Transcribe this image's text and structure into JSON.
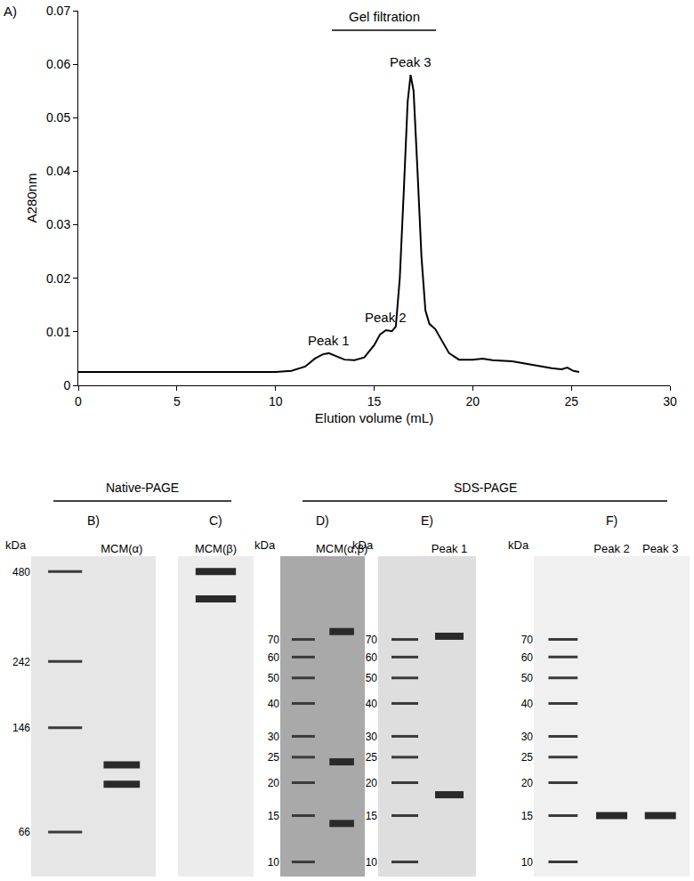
{
  "chart_data": [
    {
      "type": "line",
      "panel": "A)",
      "title": "Gel filtration",
      "xlabel": "Elution volume (mL)",
      "ylabel": "A280nm",
      "x": [
        0,
        10,
        10.8,
        11.5,
        12,
        12.4,
        12.7,
        13,
        13.5,
        14,
        14.5,
        15,
        15.3,
        15.6,
        15.9,
        16.1,
        16.3,
        16.5,
        16.7,
        16.85,
        17.0,
        17.2,
        17.4,
        17.6,
        17.8,
        18.1,
        18.4,
        18.8,
        19.3,
        20,
        20.5,
        21,
        22,
        23,
        24,
        24.5,
        24.8,
        25.1,
        25.4
      ],
      "values": [
        0.0025,
        0.0025,
        0.0027,
        0.0035,
        0.005,
        0.0058,
        0.006,
        0.0056,
        0.0048,
        0.0047,
        0.0052,
        0.0075,
        0.0095,
        0.0103,
        0.0101,
        0.011,
        0.02,
        0.036,
        0.053,
        0.058,
        0.055,
        0.04,
        0.024,
        0.014,
        0.0115,
        0.0105,
        0.0085,
        0.006,
        0.0048,
        0.0048,
        0.005,
        0.0047,
        0.0045,
        0.0038,
        0.0032,
        0.003,
        0.0033,
        0.0027,
        0.0025
      ],
      "color": "#000000",
      "xlim": [
        0,
        30
      ],
      "xticks": [
        0,
        5,
        10,
        15,
        20,
        25,
        30
      ],
      "ylim": [
        0,
        0.07
      ],
      "yticks": [
        0,
        0.01,
        0.02,
        0.03,
        0.04,
        0.05,
        0.06,
        0.07
      ],
      "grid": false,
      "annotations": [
        {
          "text": "Peak 1",
          "x": 12.7,
          "y": 0.006
        },
        {
          "text": "Peak 2",
          "x": 15.6,
          "y": 0.0103
        },
        {
          "text": "Peak 3",
          "x": 16.85,
          "y": 0.058
        }
      ]
    },
    {
      "type": "gel",
      "panel": "B)",
      "categories": [
        null,
        "MCM(α)"
      ],
      "ylabel": "kDa",
      "log": "y",
      "ylim": [
        47,
        540
      ],
      "yticks": [
        480,
        242,
        146,
        66
      ],
      "ladder": [
        480,
        242,
        146,
        66
      ],
      "bands": [
        {
          "lane": "MCM(α)",
          "kda": 95
        },
        {
          "lane": "MCM(α)",
          "kda": 110
        }
      ]
    },
    {
      "type": "gel",
      "panel": "C)",
      "categories": [
        "MCM(β)"
      ],
      "log": "y",
      "tick_labels": "x",
      "ylim": [
        47,
        540
      ],
      "bands": [
        {
          "lane": "MCM(β)",
          "kda": 480
        },
        {
          "lane": "MCM(β)",
          "kda": 390
        }
      ]
    },
    {
      "type": "gel",
      "panel": "D)",
      "categories": [
        null,
        "MCM(α,β)"
      ],
      "ylabel": "kDa",
      "log": "y",
      "ylim": [
        8.8,
        145
      ],
      "yticks": [
        70,
        60,
        50,
        40,
        30,
        25,
        20,
        15,
        10
      ],
      "ladder": [
        70,
        60,
        50,
        40,
        30,
        25,
        20,
        15,
        10
      ],
      "bands": [
        {
          "lane": "MCM(α,β)",
          "kda": 75
        },
        {
          "lane": "MCM(α,β)",
          "kda": 24
        },
        {
          "lane": "MCM(α,β)",
          "kda": 14
        }
      ]
    },
    {
      "type": "gel",
      "panel": "E)",
      "categories": [
        null,
        "Peak 1"
      ],
      "ylabel": "kDa",
      "log": "y",
      "ylim": [
        8.8,
        145
      ],
      "yticks": [
        70,
        60,
        50,
        40,
        30,
        25,
        20,
        15,
        10
      ],
      "ladder": [
        70,
        60,
        50,
        40,
        30,
        25,
        20,
        15,
        10
      ],
      "bands": [
        {
          "lane": "Peak 1",
          "kda": 72
        },
        {
          "lane": "Peak 1",
          "kda": 18
        }
      ]
    },
    {
      "type": "gel",
      "panel": "F)",
      "categories": [
        null,
        "Peak 2",
        "Peak 3"
      ],
      "ylabel": "kDa",
      "log": "y",
      "ylim": [
        8.8,
        145
      ],
      "yticks": [
        70,
        60,
        50,
        40,
        30,
        25,
        20,
        15,
        10
      ],
      "ladder": [
        70,
        60,
        50,
        40,
        30,
        25,
        20,
        15,
        10
      ],
      "bands": [
        {
          "lane": "Peak 2",
          "kda": 15
        },
        {
          "lane": "Peak 3",
          "kda": 15
        }
      ]
    }
  ],
  "headers": [
    {
      "text": "Native-PAGE",
      "panels": [
        "B)",
        "C)"
      ]
    },
    {
      "text": "SDS-PAGE",
      "panels": [
        "D)",
        "E)",
        "F)"
      ]
    }
  ]
}
